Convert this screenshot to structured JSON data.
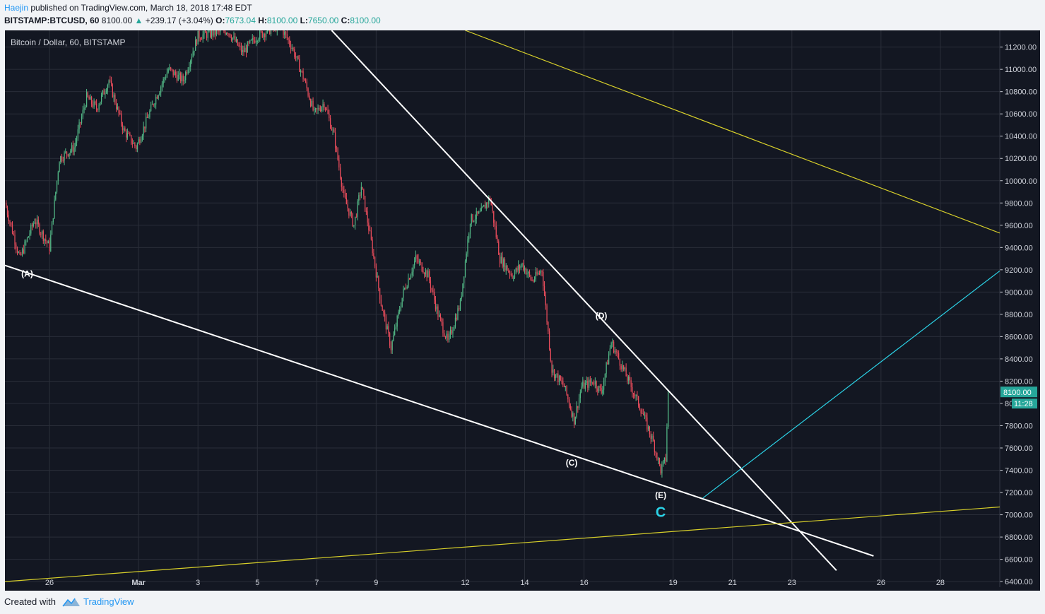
{
  "header": {
    "author": "Haejin",
    "published_text": " published on TradingView.com, March 18, 2018 17:48 EDT",
    "symbol": "BITSTAMP:BTCUSD, 60",
    "last": " 8100.00 ",
    "arrow": "▲",
    "change": "+239.17 (+3.04%)",
    "o_label": " O:",
    "o_value": "7673.04",
    "h_label": " H:",
    "h_value": "8100.00",
    "l_label": " L:",
    "l_value": "7650.00",
    "c_label": " C:",
    "c_value": "8100.00"
  },
  "footer": {
    "created_with": "Created with",
    "brand": "TradingView"
  },
  "colors": {
    "background": "#131722",
    "up": "#26a69a",
    "down": "#ef5350",
    "up_bright": "#53b987",
    "down_bright": "#eb4d5c",
    "grid": "#2a2e39",
    "axis_text": "#d1d4dc",
    "last_price_badge": "#26a69a",
    "white_line": "#ffffff",
    "yellow_line": "#d7cf2a",
    "cyan_line": "#2bd2e6"
  },
  "chart_data": {
    "type": "candlestick",
    "title": "Bitcoin / Dollar, 60, BITSTAMP",
    "timeframe": "60",
    "yrange": [
      6350,
      11350
    ],
    "y_ticks": [
      6400,
      6600,
      6800,
      7000,
      7200,
      7400,
      7600,
      7800,
      8000,
      8200,
      8400,
      8600,
      8800,
      9000,
      9200,
      9400,
      9600,
      9800,
      10000,
      10200,
      10400,
      10600,
      10800,
      11000,
      11200
    ],
    "y_tick_labels": [
      "6400.00",
      "6600.00",
      "6800.00",
      "7000.00",
      "7200.00",
      "7400.00",
      "7600.00",
      "7800.00",
      "8000.00",
      "8200.00",
      "8400.00",
      "8600.00",
      "8800.00",
      "9000.00",
      "9200.00",
      "9400.00",
      "9600.00",
      "9800.00",
      "10000.00",
      "10200.00",
      "10400.00",
      "10600.00",
      "10800.00",
      "11000.00",
      "11200.00"
    ],
    "x_range_days": [
      "2018-02-24T12:00",
      "2018-03-30T00:00"
    ],
    "x_ticks": [
      {
        "date": "2018-02-26",
        "label": "26"
      },
      {
        "date": "2018-03-01",
        "label": "Mar"
      },
      {
        "date": "2018-03-03",
        "label": "3"
      },
      {
        "date": "2018-03-05",
        "label": "5"
      },
      {
        "date": "2018-03-07",
        "label": "7"
      },
      {
        "date": "2018-03-09",
        "label": "9"
      },
      {
        "date": "2018-03-12",
        "label": "12"
      },
      {
        "date": "2018-03-14",
        "label": "14"
      },
      {
        "date": "2018-03-16",
        "label": "16"
      },
      {
        "date": "2018-03-19",
        "label": "19"
      },
      {
        "date": "2018-03-21",
        "label": "21"
      },
      {
        "date": "2018-03-23",
        "label": "23"
      },
      {
        "date": "2018-03-26",
        "label": "26"
      },
      {
        "date": "2018-03-28",
        "label": "28"
      }
    ],
    "price_path": [
      {
        "date": "2018-02-24T12:00",
        "price": 9800
      },
      {
        "date": "2018-02-25T00:00",
        "price": 9300
      },
      {
        "date": "2018-02-25T12:00",
        "price": 9650
      },
      {
        "date": "2018-02-26T00:00",
        "price": 9400
      },
      {
        "date": "2018-02-26T08:00",
        "price": 10200
      },
      {
        "date": "2018-02-26T20:00",
        "price": 10300
      },
      {
        "date": "2018-02-27T06:00",
        "price": 10750
      },
      {
        "date": "2018-02-27T14:00",
        "price": 10650
      },
      {
        "date": "2018-02-28T00:00",
        "price": 10900
      },
      {
        "date": "2018-02-28T12:00",
        "price": 10450
      },
      {
        "date": "2018-02-28T22:00",
        "price": 10300
      },
      {
        "date": "2018-03-01T12:00",
        "price": 10700
      },
      {
        "date": "2018-03-02T00:00",
        "price": 11000
      },
      {
        "date": "2018-03-02T12:00",
        "price": 10900
      },
      {
        "date": "2018-03-03T00:00",
        "price": 11300
      },
      {
        "date": "2018-03-04T00:00",
        "price": 11350
      },
      {
        "date": "2018-03-04T12:00",
        "price": 11150
      },
      {
        "date": "2018-03-05T00:00",
        "price": 11300
      },
      {
        "date": "2018-03-05T18:00",
        "price": 11400
      },
      {
        "date": "2018-03-06T04:00",
        "price": 11200
      },
      {
        "date": "2018-03-06T14:00",
        "price": 10900
      },
      {
        "date": "2018-03-06T22:00",
        "price": 10600
      },
      {
        "date": "2018-03-07T06:00",
        "price": 10700
      },
      {
        "date": "2018-03-07T14:00",
        "price": 10400
      },
      {
        "date": "2018-03-07T22:00",
        "price": 9850
      },
      {
        "date": "2018-03-08T06:00",
        "price": 9600
      },
      {
        "date": "2018-03-08T12:00",
        "price": 9950
      },
      {
        "date": "2018-03-08T20:00",
        "price": 9450
      },
      {
        "date": "2018-03-09T04:00",
        "price": 8900
      },
      {
        "date": "2018-03-09T12:00",
        "price": 8500
      },
      {
        "date": "2018-03-09T22:00",
        "price": 9000
      },
      {
        "date": "2018-03-10T08:00",
        "price": 9300
      },
      {
        "date": "2018-03-10T18:00",
        "price": 9150
      },
      {
        "date": "2018-03-11T02:00",
        "price": 8800
      },
      {
        "date": "2018-03-11T10:00",
        "price": 8550
      },
      {
        "date": "2018-03-11T20:00",
        "price": 8900
      },
      {
        "date": "2018-03-12T04:00",
        "price": 9650
      },
      {
        "date": "2018-03-12T12:00",
        "price": 9700
      },
      {
        "date": "2018-03-12T20:00",
        "price": 9850
      },
      {
        "date": "2018-03-13T04:00",
        "price": 9300
      },
      {
        "date": "2018-03-13T14:00",
        "price": 9150
      },
      {
        "date": "2018-03-13T22:00",
        "price": 9250
      },
      {
        "date": "2018-03-14T06:00",
        "price": 9100
      },
      {
        "date": "2018-03-14T14:00",
        "price": 9200
      },
      {
        "date": "2018-03-14T22:00",
        "price": 8300
      },
      {
        "date": "2018-03-15T08:00",
        "price": 8150
      },
      {
        "date": "2018-03-15T16:00",
        "price": 7850
      },
      {
        "date": "2018-03-15T22:00",
        "price": 8150
      },
      {
        "date": "2018-03-16T08:00",
        "price": 8200
      },
      {
        "date": "2018-03-16T14:00",
        "price": 8100
      },
      {
        "date": "2018-03-16T22:00",
        "price": 8550
      },
      {
        "date": "2018-03-17T06:00",
        "price": 8350
      },
      {
        "date": "2018-03-17T14:00",
        "price": 8150
      },
      {
        "date": "2018-03-17T22:00",
        "price": 7950
      },
      {
        "date": "2018-03-18T08:00",
        "price": 7650
      },
      {
        "date": "2018-03-18T14:00",
        "price": 7400
      },
      {
        "date": "2018-03-18T18:00",
        "price": 7500
      },
      {
        "date": "2018-03-18T20:00",
        "price": 8100
      }
    ],
    "trendlines": [
      {
        "name": "lower-white",
        "color": "white",
        "from": {
          "date": "2018-02-24T12:00",
          "price": 9240
        },
        "to": {
          "date": "2018-03-25T18:00",
          "price": 6630
        }
      },
      {
        "name": "upper-white",
        "color": "white",
        "from": {
          "date": "2018-03-07T12:00",
          "price": 11350
        },
        "to": {
          "date": "2018-03-24T12:00",
          "price": 6500
        }
      },
      {
        "name": "upper-yellow",
        "color": "yellow",
        "from": {
          "date": "2018-03-12T00:00",
          "price": 11350
        },
        "to": {
          "date": "2018-03-30T00:00",
          "price": 9530
        }
      },
      {
        "name": "lower-yellow",
        "color": "yellow",
        "from": {
          "date": "2018-02-24T12:00",
          "price": 6400
        },
        "to": {
          "date": "2018-03-30T00:00",
          "price": 7070
        }
      },
      {
        "name": "cyan",
        "color": "cyan",
        "from": {
          "date": "2018-03-20T00:00",
          "price": 7150
        },
        "to": {
          "date": "2018-03-30T00:00",
          "price": 9190
        }
      }
    ],
    "annotations": [
      {
        "text": "(A)",
        "date": "2018-02-25T06:00",
        "price": 9140,
        "color": "white"
      },
      {
        "text": "(C)",
        "date": "2018-03-15T14:00",
        "price": 7440,
        "color": "white"
      },
      {
        "text": "(D)",
        "date": "2018-03-16T14:00",
        "price": 8760,
        "color": "white"
      },
      {
        "text": "(E)",
        "date": "2018-03-18T14:00",
        "price": 7150,
        "color": "white"
      },
      {
        "text": "C",
        "date": "2018-03-18T14:00",
        "price": 6980,
        "color": "cyan"
      }
    ],
    "last_price": {
      "value": "8100.00",
      "countdown": "11:28"
    }
  }
}
